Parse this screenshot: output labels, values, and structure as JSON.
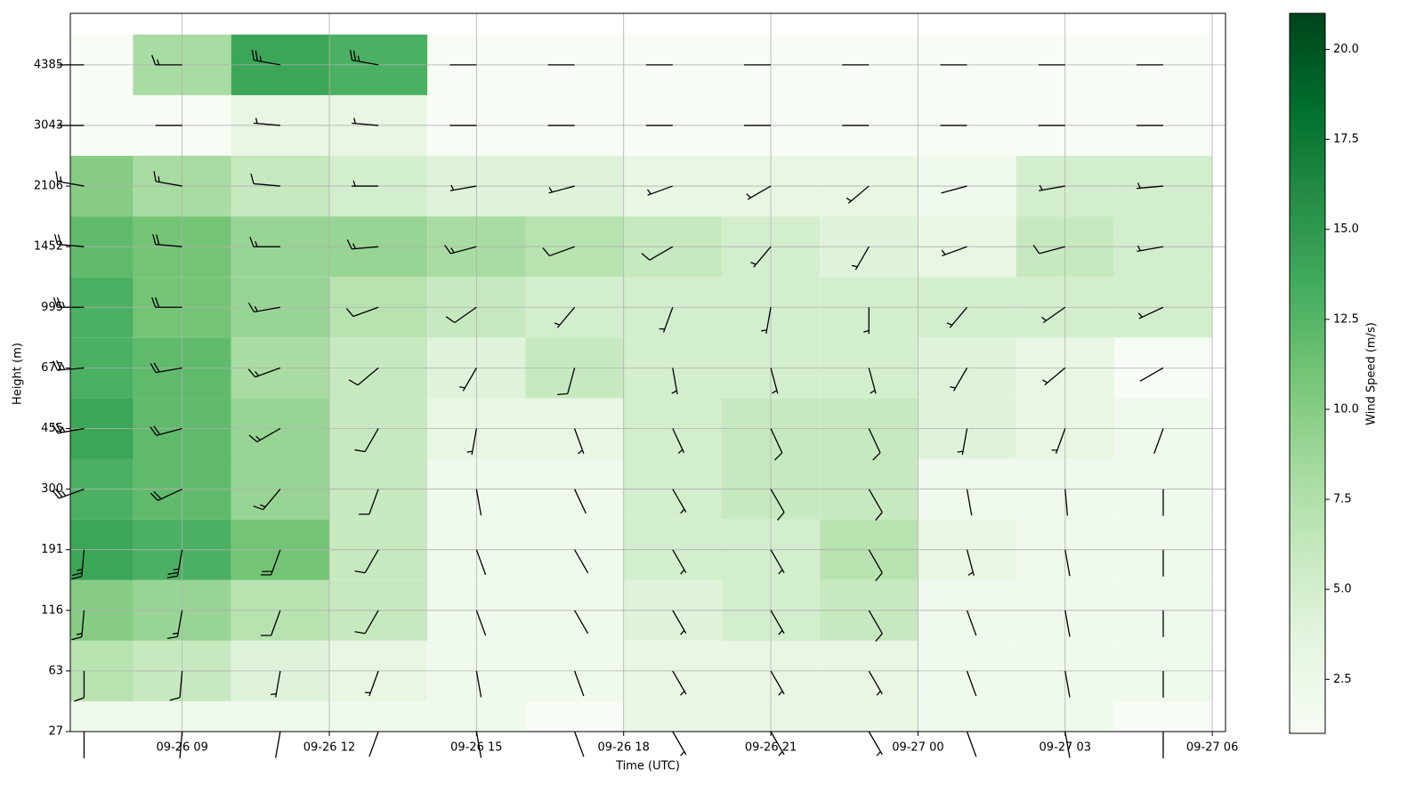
{
  "chart_data": {
    "type": "barbs",
    "x_label": "Time (UTC)",
    "y_label": "Height (m)",
    "colorbar_label": "Wind Speed (m/s)",
    "colormap": [
      "#f7fcf5",
      "#e5f5e0",
      "#c7e9c0",
      "#a1d99b",
      "#74c476",
      "#41ab5d",
      "#238b45",
      "#006d2c",
      "#00441b"
    ],
    "grid": true,
    "xlim": [
      6.72,
      30.27
    ],
    "xticks": [
      {
        "value": 9,
        "label": "09-26 09"
      },
      {
        "value": 12,
        "label": "09-26 12"
      },
      {
        "value": 15,
        "label": "09-26 15"
      },
      {
        "value": 18,
        "label": "09-26 18"
      },
      {
        "value": 21,
        "label": "09-26 21"
      },
      {
        "value": 24,
        "label": "09-27 00"
      },
      {
        "value": 27,
        "label": "09-27 03"
      },
      {
        "value": 30,
        "label": "09-27 06"
      }
    ],
    "ylim": [
      27,
      5525
    ],
    "yticks": [
      27,
      63,
      116,
      191,
      300,
      455,
      677,
      995,
      1452,
      2106,
      3043,
      4385
    ],
    "clim": [
      1,
      21
    ],
    "cticks": [
      {
        "value": 2.5,
        "label": "2.5"
      },
      {
        "value": 5,
        "label": "5.0"
      },
      {
        "value": 7.5,
        "label": "7.5"
      },
      {
        "value": 10,
        "label": "10.0"
      },
      {
        "value": 12.5,
        "label": "12.5"
      },
      {
        "value": 15,
        "label": "15.0"
      },
      {
        "value": 17.5,
        "label": "17.5"
      },
      {
        "value": 20,
        "label": "20.0"
      }
    ],
    "x": [
      7,
      9,
      11,
      13,
      15,
      17,
      19,
      21,
      23,
      25,
      27,
      29
    ],
    "y": [
      27,
      63,
      116,
      191,
      300,
      455,
      677,
      995,
      1452,
      2106,
      3043,
      4385
    ],
    "speed": [
      [
        2,
        2,
        2,
        2,
        2,
        1,
        3,
        3,
        3,
        2,
        2,
        1
      ],
      [
        7,
        6,
        4,
        3,
        2,
        2,
        3,
        3,
        3,
        2,
        2,
        2
      ],
      [
        10,
        9,
        7,
        6,
        2,
        2,
        4,
        5,
        6,
        2,
        2,
        2
      ],
      [
        14,
        13,
        11,
        6,
        2,
        2,
        5,
        5,
        7,
        3,
        2,
        2
      ],
      [
        13,
        12,
        9,
        6,
        2,
        2,
        5,
        6,
        6,
        2,
        2,
        2
      ],
      [
        14,
        12,
        9,
        6,
        3,
        3,
        5,
        6,
        6,
        4,
        3,
        2
      ],
      [
        13,
        12,
        8,
        6,
        4,
        6,
        5,
        5,
        5,
        4,
        3,
        1
      ],
      [
        13,
        11,
        9,
        7,
        6,
        5,
        5,
        5,
        5,
        5,
        5,
        5
      ],
      [
        12,
        11,
        9,
        9,
        8,
        7,
        6,
        5,
        4,
        3,
        6,
        5
      ],
      [
        10,
        8,
        6,
        5,
        4,
        4,
        3,
        3,
        3,
        2,
        5,
        5
      ],
      [
        1,
        1,
        3,
        3,
        1,
        1,
        1,
        1,
        1,
        1,
        1,
        1
      ],
      [
        1,
        8,
        14,
        13,
        1,
        1,
        1,
        1,
        1,
        1,
        1,
        1
      ]
    ],
    "direction": [
      [
        180,
        185,
        190,
        200,
        170,
        160,
        150,
        150,
        150,
        160,
        170,
        180
      ],
      [
        180,
        185,
        190,
        200,
        170,
        160,
        150,
        150,
        150,
        160,
        170,
        180
      ],
      [
        185,
        190,
        200,
        210,
        160,
        150,
        150,
        150,
        150,
        160,
        170,
        180
      ],
      [
        185,
        190,
        200,
        210,
        160,
        150,
        150,
        150,
        150,
        165,
        170,
        180
      ],
      [
        250,
        245,
        220,
        200,
        170,
        155,
        150,
        150,
        150,
        170,
        175,
        180
      ],
      [
        260,
        255,
        240,
        210,
        190,
        160,
        155,
        155,
        155,
        190,
        200,
        200
      ],
      [
        265,
        260,
        250,
        230,
        210,
        195,
        170,
        165,
        165,
        210,
        230,
        240
      ],
      [
        270,
        270,
        260,
        250,
        235,
        220,
        200,
        190,
        180,
        220,
        235,
        245
      ],
      [
        275,
        275,
        270,
        265,
        255,
        250,
        240,
        220,
        210,
        250,
        255,
        260
      ],
      [
        280,
        280,
        275,
        270,
        260,
        255,
        250,
        240,
        230,
        255,
        260,
        265
      ],
      [
        270,
        270,
        275,
        275,
        270,
        270,
        270,
        270,
        270,
        270,
        270,
        270
      ],
      [
        270,
        270,
        280,
        280,
        270,
        270,
        270,
        270,
        270,
        270,
        270,
        270
      ]
    ]
  }
}
